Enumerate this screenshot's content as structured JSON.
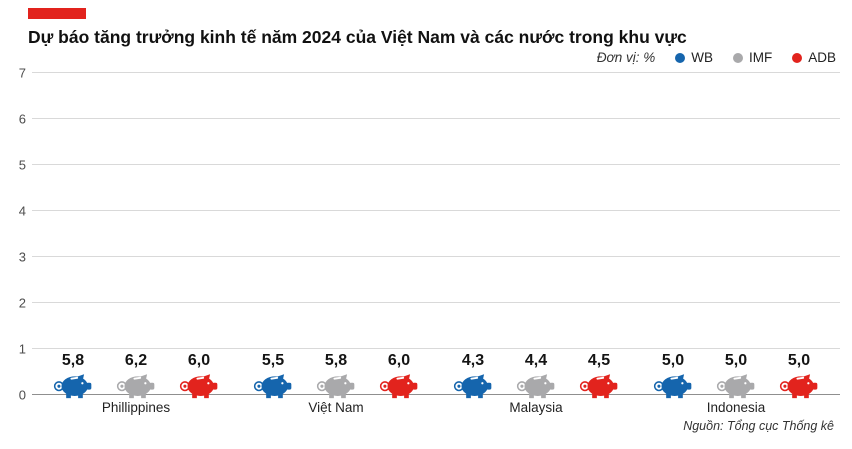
{
  "page": {
    "title": "Dự báo tăng trưởng kinh tế năm 2024 của Việt Nam và các nước trong khu vực",
    "unit_label": "Đơn vị: %",
    "source": "Nguồn: Tổng cục Thống kê"
  },
  "colors": {
    "accent": "#e2231d",
    "wb_blue": "#1565ad",
    "imf_gray": "#a9a9ab",
    "adb_red": "#e2231d",
    "gridline": "#d9d9d9"
  },
  "chart_data": {
    "type": "bar",
    "title": "Dự báo tăng trưởng kinh tế năm 2024 của Việt Nam và các nước trong khu vực",
    "unit": "%",
    "categories": [
      "Phillippines",
      "Việt Nam",
      "Malaysia",
      "Indonesia"
    ],
    "series": [
      {
        "name": "WB",
        "color": "#1565ad",
        "values": [
          5.8,
          5.5,
          4.3,
          5.0
        ],
        "labels": [
          "5,8",
          "5,5",
          "4,3",
          "5,0"
        ]
      },
      {
        "name": "IMF",
        "color": "#a9a9ab",
        "values": [
          6.2,
          5.8,
          4.4,
          5.0
        ],
        "labels": [
          "6,2",
          "5,8",
          "4,4",
          "5,0"
        ]
      },
      {
        "name": "ADB",
        "color": "#e2231d",
        "values": [
          6.0,
          6.0,
          4.5,
          5.0
        ],
        "labels": [
          "6,0",
          "6,0",
          "4,5",
          "5,0"
        ]
      }
    ],
    "xlabel": "",
    "ylabel": "",
    "ylim": [
      0,
      7
    ],
    "yticks": [
      0,
      1,
      2,
      3,
      4,
      5,
      6,
      7
    ],
    "grid": true,
    "legend_position": "top-right"
  }
}
